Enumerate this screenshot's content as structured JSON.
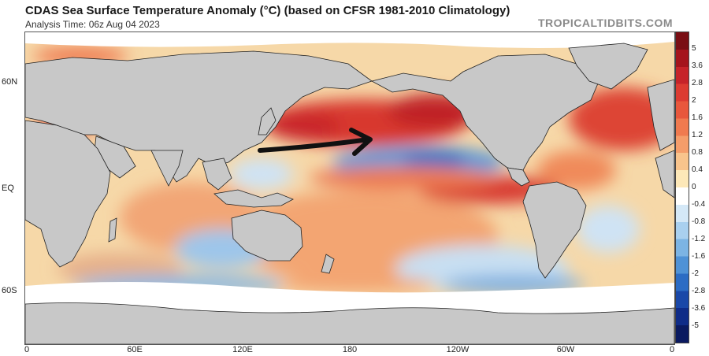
{
  "header": {
    "title": "CDAS Sea Surface Temperature Anomaly (°C) (based on CFSR 1981-2010 Climatology)",
    "analysis_time": "Analysis Time: 06z Aug 04 2023",
    "brand": "TROPICALTIDBITS.COM"
  },
  "map": {
    "lat_labels": [
      "60N",
      "EQ",
      "60S"
    ],
    "lon_labels": [
      "0",
      "60E",
      "120E",
      "180",
      "120W",
      "60W",
      "0"
    ],
    "annotation_arrow": "black arrow pointing east across the North Pacific",
    "land_color": "#c8c8c8",
    "sea_ice_color": "#ffffff"
  },
  "colorbar": {
    "labels": [
      "5",
      "3.6",
      "2.8",
      "2",
      "1.6",
      "1.2",
      "0.8",
      "0.4",
      "0",
      "-0.4",
      "-0.8",
      "-1.2",
      "-1.6",
      "-2",
      "-2.8",
      "-3.6",
      "-5"
    ],
    "colors": [
      "#7a0e14",
      "#a5141c",
      "#c62329",
      "#dc3b31",
      "#e8573c",
      "#f07a4f",
      "#f59d6a",
      "#f9c48c",
      "#fde8b8",
      "#ffffff",
      "#d4e8f7",
      "#a9d0ef",
      "#7cb4e4",
      "#4f92d6",
      "#2c6cc4",
      "#1a48a8",
      "#0f2c88",
      "#0a1a60"
    ]
  }
}
